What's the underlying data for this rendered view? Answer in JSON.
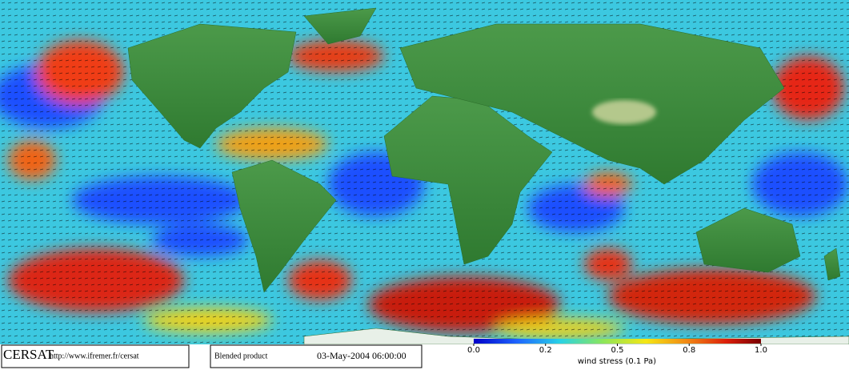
{
  "header": {
    "logo": "CERSAT",
    "url": "http://www.ifremer.fr/cersat"
  },
  "product": "Blended product",
  "timestamp": "03-May-2004 06:00:00",
  "colorbar": {
    "label": "wind stress (0.1 Pa)",
    "ticks": [
      {
        "value": 0,
        "label": "0.0"
      },
      0.2,
      0.5,
      0.8,
      {
        "value": 1,
        "label": "1.0"
      }
    ]
  }
}
